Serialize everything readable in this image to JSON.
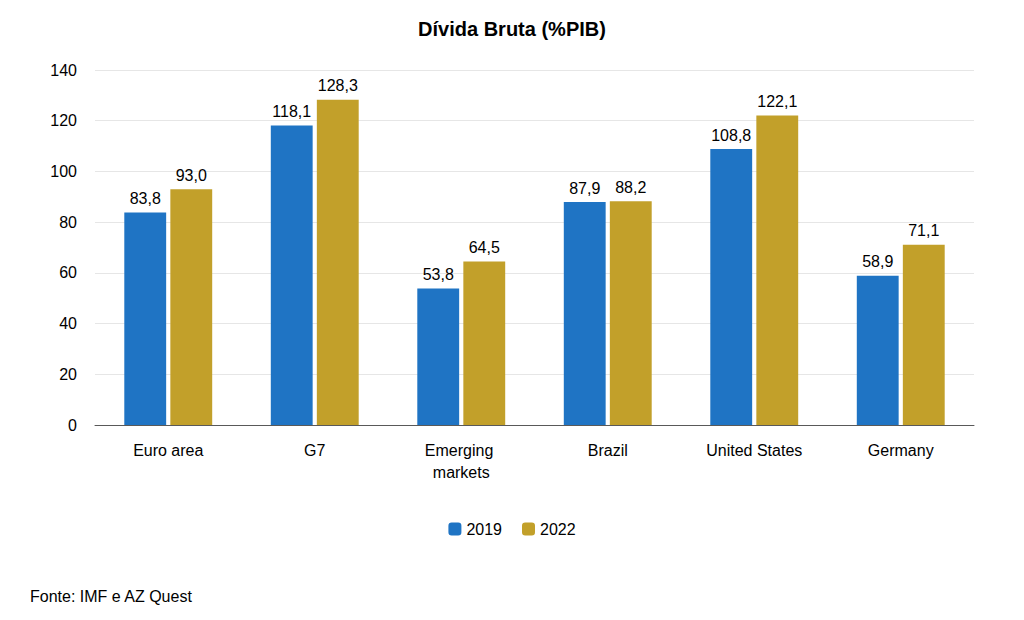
{
  "chart_data": {
    "type": "bar",
    "title": "Dívida Bruta (%PIB)",
    "categories": [
      "Euro area",
      "G7",
      "Emerging markets",
      "Brazil",
      "United States",
      "Germany"
    ],
    "series": [
      {
        "name": "2019",
        "color": "#1F74C4",
        "values": [
          83.8,
          118.1,
          53.8,
          87.9,
          108.8,
          58.9
        ],
        "value_labels": [
          "83,8",
          "118,1",
          "53,8",
          "87,9",
          "108,8",
          "58,9"
        ]
      },
      {
        "name": "2022",
        "color": "#C2A02A",
        "values": [
          93.0,
          128.3,
          64.5,
          88.2,
          122.1,
          71.1
        ],
        "value_labels": [
          "93,0",
          "128,3",
          "64,5",
          "88,2",
          "122,1",
          "71,1"
        ]
      }
    ],
    "ylim": [
      0,
      140
    ],
    "yticks": [
      0,
      20,
      40,
      60,
      80,
      100,
      120,
      140
    ],
    "grid": true,
    "legend": "bottom",
    "data_labels": true,
    "annotations": [
      "Fonte: IMF e AZ Quest"
    ]
  }
}
